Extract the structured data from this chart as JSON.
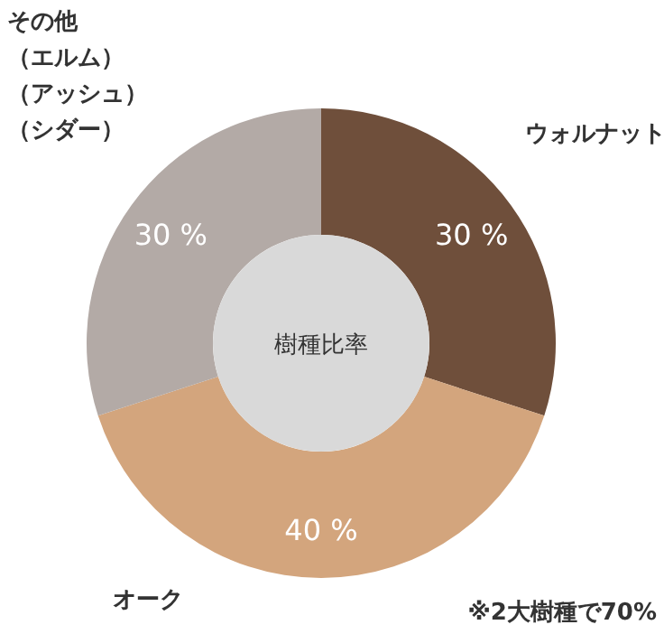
{
  "chart_data": {
    "type": "donut",
    "title": "樹種比率",
    "categories": [
      "ウォルナット",
      "オーク",
      "その他（エルム）（アッシュ）（シダー）"
    ],
    "values": [
      30,
      40,
      30
    ],
    "colors": [
      "#6f4f3b",
      "#d3a57d",
      "#b3aaa6"
    ],
    "value_labels": [
      "30 %",
      "40 %",
      "30 %"
    ],
    "annotations": [
      "※2大樹種で70%"
    ]
  }
}
